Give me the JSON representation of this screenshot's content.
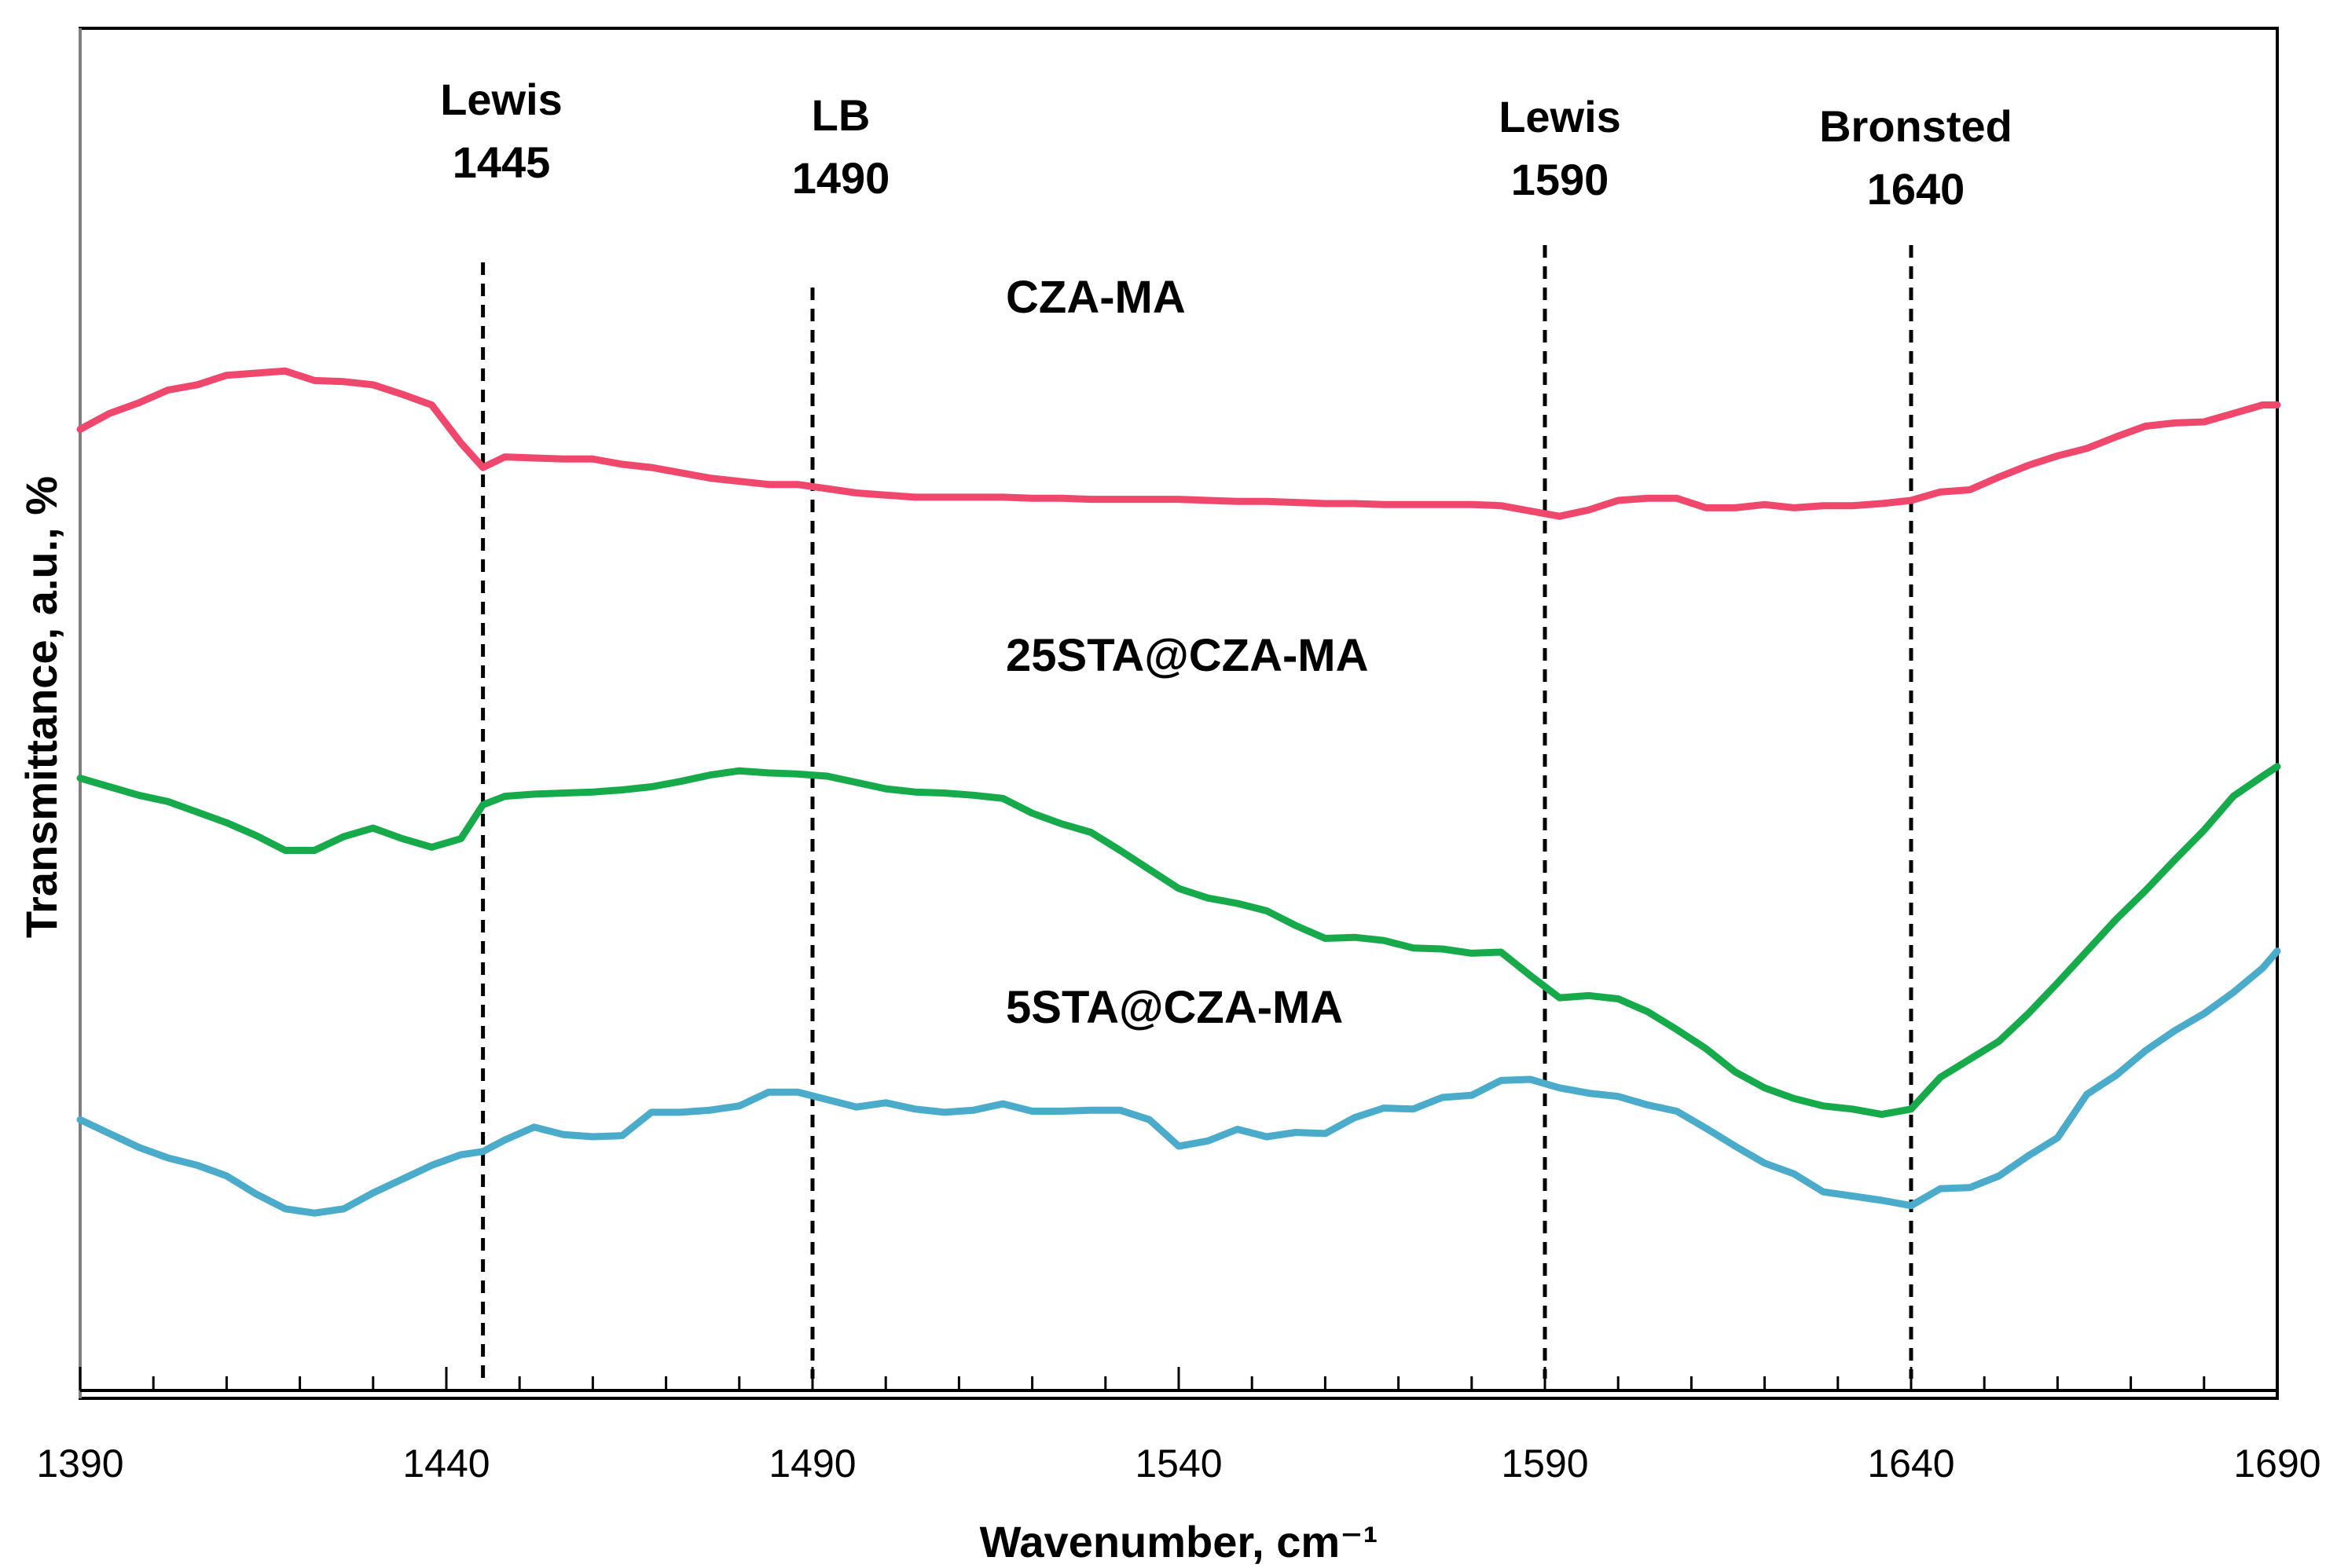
{
  "chart_data": {
    "type": "line",
    "title": "",
    "xlabel": "Wavenumber, cm⁻¹",
    "ylabel": "Transmittance, a.u., %",
    "xlim": [
      1390,
      1690
    ],
    "ylim": [
      0,
      100
    ],
    "grid": false,
    "x_major_ticks": [
      1390,
      1440,
      1490,
      1540,
      1590,
      1640,
      1690
    ],
    "x_tick_labels": [
      "1390",
      "1440",
      "1490",
      "1540",
      "1590",
      "1640",
      "1690"
    ],
    "y_ticks_shown": false,
    "x": [
      1390,
      1394,
      1398,
      1402,
      1406,
      1410,
      1414,
      1418,
      1422,
      1426,
      1430,
      1434,
      1438,
      1442,
      1445,
      1448,
      1452,
      1456,
      1460,
      1464,
      1468,
      1472,
      1476,
      1480,
      1484,
      1488,
      1492,
      1496,
      1500,
      1504,
      1508,
      1512,
      1516,
      1520,
      1524,
      1528,
      1532,
      1536,
      1540,
      1544,
      1548,
      1552,
      1556,
      1560,
      1564,
      1568,
      1572,
      1576,
      1580,
      1584,
      1588,
      1592,
      1596,
      1600,
      1604,
      1608,
      1612,
      1616,
      1620,
      1624,
      1628,
      1632,
      1636,
      1640,
      1644,
      1648,
      1652,
      1656,
      1660,
      1664,
      1668,
      1672,
      1676,
      1680,
      1684,
      1688,
      1690
    ],
    "series": [
      {
        "name": "CZA-MA",
        "color": "#f0476d",
        "values": [
          81.0,
          82.5,
          83.5,
          84.7,
          85.2,
          86.1,
          86.3,
          86.5,
          85.6,
          85.5,
          85.2,
          84.3,
          83.3,
          79.7,
          77.4,
          78.4,
          78.3,
          78.2,
          78.2,
          77.7,
          77.4,
          76.9,
          76.4,
          76.1,
          75.8,
          75.8,
          75.4,
          75.0,
          74.8,
          74.6,
          74.6,
          74.6,
          74.6,
          74.5,
          74.5,
          74.4,
          74.4,
          74.4,
          74.4,
          74.3,
          74.2,
          74.2,
          74.1,
          74.0,
          74.0,
          73.9,
          73.9,
          73.9,
          73.9,
          73.8,
          73.3,
          72.8,
          73.4,
          74.3,
          74.5,
          74.5,
          73.6,
          73.6,
          73.9,
          73.6,
          73.8,
          73.8,
          74.0,
          74.3,
          75.1,
          75.3,
          76.5,
          77.6,
          78.5,
          79.2,
          80.3,
          81.3,
          81.6,
          81.7,
          82.5,
          83.3,
          83.3
        ],
        "label_text": "CZA-MA"
      },
      {
        "name": "25STA@CZA-MA",
        "color": "#16aa4b",
        "values": [
          48.1,
          47.3,
          46.5,
          45.9,
          44.9,
          43.9,
          42.7,
          41.3,
          41.3,
          42.6,
          43.4,
          42.4,
          41.6,
          42.4,
          45.6,
          46.4,
          46.6,
          46.7,
          46.8,
          47.0,
          47.3,
          47.8,
          48.4,
          48.8,
          48.6,
          48.5,
          48.3,
          47.7,
          47.1,
          46.8,
          46.7,
          46.5,
          46.2,
          44.8,
          43.8,
          43.0,
          41.3,
          39.5,
          37.7,
          36.8,
          36.3,
          35.6,
          34.2,
          33.0,
          33.1,
          32.8,
          32.1,
          32.0,
          31.6,
          31.7,
          29.5,
          27.4,
          27.6,
          27.3,
          26.1,
          24.4,
          22.6,
          20.4,
          18.9,
          17.9,
          17.2,
          16.9,
          16.4,
          16.9,
          19.9,
          21.6,
          23.3,
          25.9,
          28.8,
          31.8,
          34.8,
          37.5,
          40.4,
          43.2,
          46.4,
          48.3,
          49.2
        ],
        "label_text": "25STA@CZA-MA"
      },
      {
        "name": "5STA@CZA-MA",
        "color": "#4aabca",
        "values": [
          15.9,
          14.6,
          13.3,
          12.3,
          11.6,
          10.6,
          8.9,
          7.5,
          7.1,
          7.5,
          9.0,
          10.3,
          11.6,
          12.6,
          12.9,
          14.0,
          15.2,
          14.5,
          14.3,
          14.4,
          16.6,
          16.6,
          16.8,
          17.2,
          18.5,
          18.5,
          17.8,
          17.1,
          17.5,
          16.9,
          16.6,
          16.8,
          17.4,
          16.7,
          16.7,
          16.8,
          16.8,
          15.9,
          13.4,
          13.9,
          15.0,
          14.3,
          14.7,
          14.6,
          16.1,
          17.0,
          16.9,
          18.0,
          18.2,
          19.6,
          19.7,
          18.9,
          18.4,
          18.1,
          17.3,
          16.7,
          15.1,
          13.4,
          11.8,
          10.8,
          9.1,
          8.7,
          8.3,
          7.8,
          9.4,
          9.5,
          10.6,
          12.5,
          14.2,
          18.3,
          20.1,
          22.4,
          24.3,
          25.9,
          27.9,
          30.2,
          31.8
        ],
        "label_text": "5STA@CZA-MA"
      }
    ],
    "reference_lines": [
      {
        "x": 1445,
        "label_line1": "Lewis",
        "label_line2": "1445"
      },
      {
        "x": 1490,
        "label_line1": "LB",
        "label_line2": "1490"
      },
      {
        "x": 1590,
        "label_line1": "Lewis",
        "label_line2": "1590"
      },
      {
        "x": 1640,
        "label_line1": "Bronsted",
        "label_line2": "1640"
      }
    ]
  }
}
